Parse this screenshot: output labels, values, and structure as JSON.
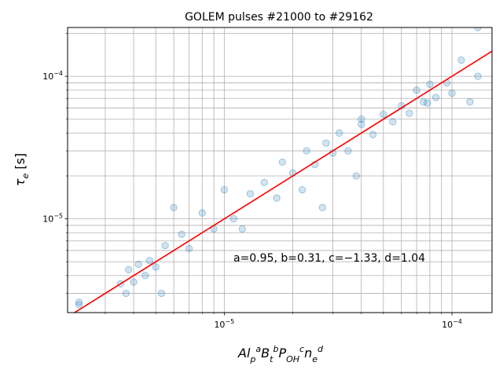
{
  "chart_data": {
    "type": "scatter",
    "title": "GOLEM pulses #21000 to #29162",
    "xlabel": "Al_p^a B_t^b P_OH^c n_e^d",
    "ylabel": "τ_e [s]",
    "xscale": "log",
    "yscale": "log",
    "xlim": [
      2.05e-06,
      0.00015
    ],
    "ylim": [
      2.2e-06,
      0.00022
    ],
    "grid": true,
    "x_ticks": [
      {
        "value": 1e-05,
        "base": "10",
        "exp": "−5"
      },
      {
        "value": 0.0001,
        "base": "10",
        "exp": "−4"
      }
    ],
    "y_ticks": [
      {
        "value": 1e-05,
        "base": "10",
        "exp": "−5"
      },
      {
        "value": 0.0001,
        "base": "10",
        "exp": "−4"
      }
    ],
    "annotation": {
      "text": "a=0.95, b=0.31, c=−1.33, d=1.04",
      "x": 1e-05,
      "y": 5e-06
    },
    "fit_line": {
      "color": "#ff0000",
      "points": [
        [
          2.05e-06,
          2.05e-06
        ],
        [
          0.00015,
          0.00015
        ]
      ]
    },
    "series": [
      {
        "color": "#1f77b4",
        "marker_alpha": 0.2,
        "points": [
          [
            2.3e-06,
            2.6e-06
          ],
          [
            2.3e-06,
            2.5e-06
          ],
          [
            3.5e-06,
            3.5e-06
          ],
          [
            3.7e-06,
            3e-06
          ],
          [
            3.8e-06,
            4.4e-06
          ],
          [
            4e-06,
            3.6e-06
          ],
          [
            4.2e-06,
            4.8e-06
          ],
          [
            4.5e-06,
            4e-06
          ],
          [
            4.7e-06,
            5.1e-06
          ],
          [
            5e-06,
            4.6e-06
          ],
          [
            5.3e-06,
            3e-06
          ],
          [
            5.5e-06,
            6.5e-06
          ],
          [
            6e-06,
            1.2e-05
          ],
          [
            6.5e-06,
            7.8e-06
          ],
          [
            7e-06,
            6.2e-06
          ],
          [
            8e-06,
            1.1e-05
          ],
          [
            9e-06,
            8.5e-06
          ],
          [
            1e-05,
            1.6e-05
          ],
          [
            1.1e-05,
            1e-05
          ],
          [
            1.2e-05,
            8.5e-06
          ],
          [
            1.3e-05,
            1.5e-05
          ],
          [
            1.5e-05,
            1.8e-05
          ],
          [
            1.7e-05,
            1.4e-05
          ],
          [
            1.8e-05,
            2.5e-05
          ],
          [
            2e-05,
            2.1e-05
          ],
          [
            2.2e-05,
            1.6e-05
          ],
          [
            2.3e-05,
            3e-05
          ],
          [
            2.5e-05,
            2.4e-05
          ],
          [
            2.7e-05,
            1.2e-05
          ],
          [
            2.8e-05,
            3.4e-05
          ],
          [
            3e-05,
            2.9e-05
          ],
          [
            3.2e-05,
            4e-05
          ],
          [
            3.5e-05,
            3e-05
          ],
          [
            3.8e-05,
            2e-05
          ],
          [
            4e-05,
            4.6e-05
          ],
          [
            4e-05,
            5e-05
          ],
          [
            4.5e-05,
            3.9e-05
          ],
          [
            5e-05,
            5.4e-05
          ],
          [
            5.5e-05,
            4.8e-05
          ],
          [
            6e-05,
            6.2e-05
          ],
          [
            6.5e-05,
            5.5e-05
          ],
          [
            7e-05,
            8e-05
          ],
          [
            7.5e-05,
            6.6e-05
          ],
          [
            8e-05,
            8.8e-05
          ],
          [
            8.5e-05,
            7.1e-05
          ],
          [
            9.5e-05,
            9e-05
          ],
          [
            0.0001,
            7.6e-05
          ],
          [
            0.00012,
            6.6e-05
          ],
          [
            0.00013,
            0.0001
          ],
          [
            0.00013,
            0.00022
          ],
          [
            0.00011,
            0.00013
          ],
          [
            7.8e-05,
            6.5e-05
          ]
        ]
      }
    ]
  }
}
